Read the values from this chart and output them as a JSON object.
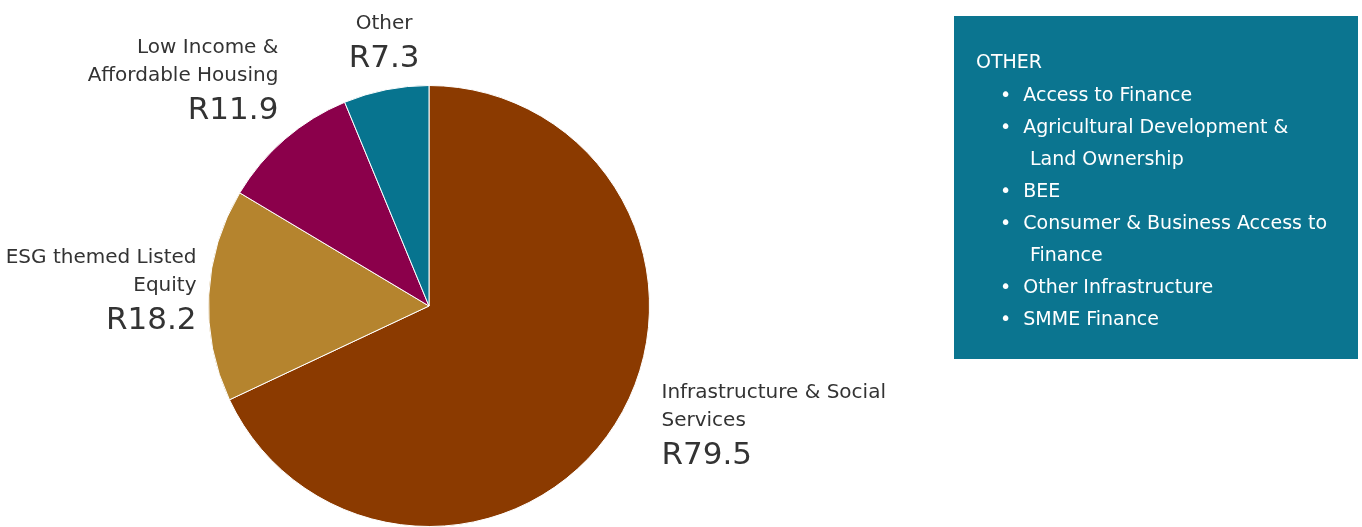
{
  "chart_data": [
    {
      "type": "pie",
      "categories": [
        "Infrastructure & Social Services",
        "ESG themed Listed Equity",
        "Low Income & Affordable Housing",
        "Other"
      ],
      "values": [
        79.5,
        18.2,
        11.9,
        7.3
      ],
      "colors": [
        "#8b3a00",
        "#b5842e",
        "#8b004b",
        "#07748f"
      ],
      "value_labels": [
        "R79.5",
        "R18.2",
        "R11.9",
        "R7.3"
      ],
      "legend": false
    },
    {
      "type": "other",
      "title": "OTHER",
      "annotations": [
        "•  Access to Finance",
        "•  Agricultural Development & Land Ownership",
        "•  BEE",
        "•  Consumer & Business Access to Finance",
        "•  Other Infrastructure",
        "•  SMME Finance"
      ]
    }
  ]
}
